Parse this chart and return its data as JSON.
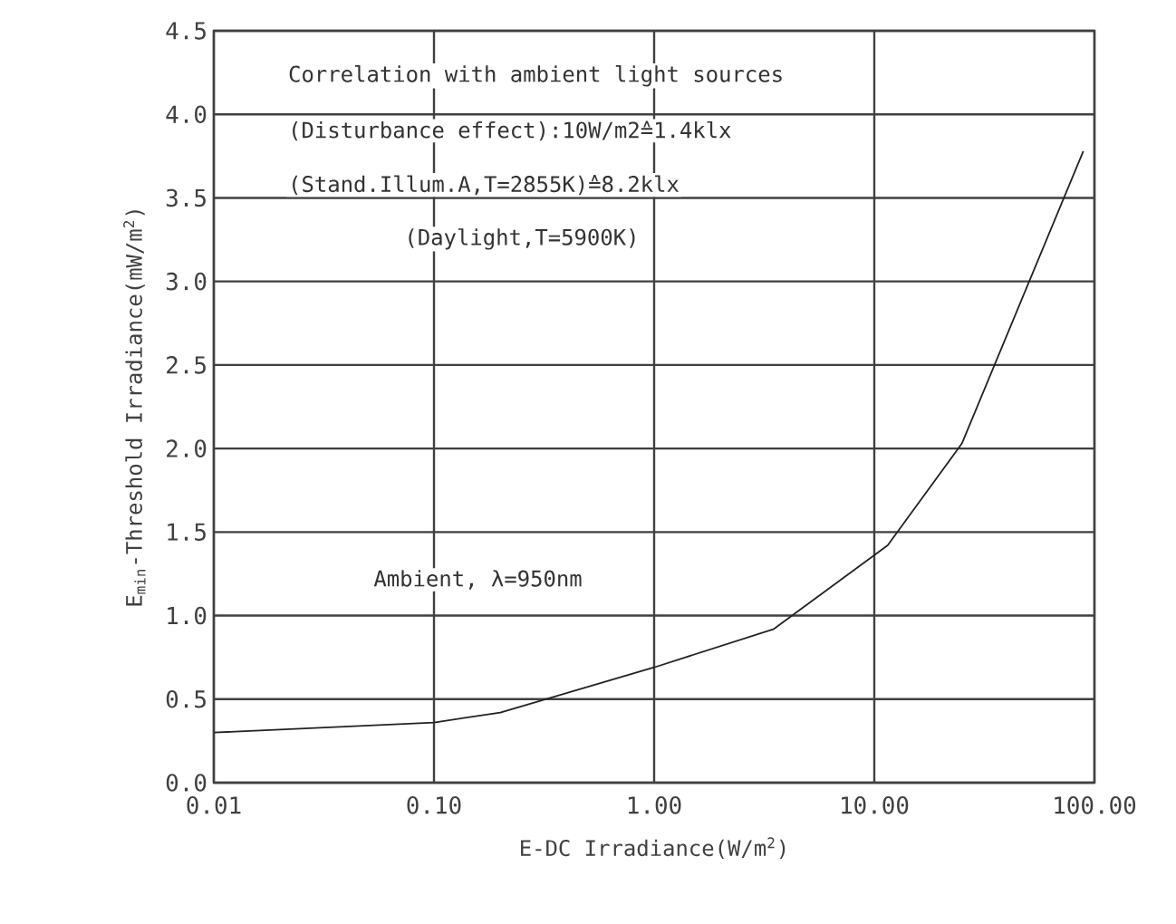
{
  "chart_data": {
    "type": "line",
    "xlabel": "E-DC Irradiance(W/m$^{2}$)",
    "ylabel": "E$_{min}$-Threshold Irradiance(mW/m$^{2}$)",
    "annotations": [
      "Correlation with ambient light sources",
      "(Disturbance effect):10W/m2≙1.4klx",
      "(Stand.Illum.A,T=2855K)≙8.2klx",
      "(Daylight,T=5900K)",
      "Ambient, λ=950nm"
    ],
    "log": "x",
    "xlim": [
      0.01,
      100
    ],
    "ylim": [
      0,
      4.5
    ],
    "xticks": [
      {
        "value": 0.01,
        "label": "0.01"
      },
      {
        "value": 0.1,
        "label": "0.10"
      },
      {
        "value": 1,
        "label": "1.00"
      },
      {
        "value": 10,
        "label": "10.00"
      },
      {
        "value": 100,
        "label": "100.00"
      }
    ],
    "yticks": [
      {
        "value": 0,
        "label": "0.0"
      },
      {
        "value": 0.5,
        "label": "0.5"
      },
      {
        "value": 1,
        "label": "1.0"
      },
      {
        "value": 1.5,
        "label": "1.5"
      },
      {
        "value": 2,
        "label": "2.0"
      },
      {
        "value": 2.5,
        "label": "2.5"
      },
      {
        "value": 3,
        "label": "3.0"
      },
      {
        "value": 3.5,
        "label": "3.5"
      },
      {
        "value": 4,
        "label": "4.0"
      },
      {
        "value": 4.5,
        "label": "4.5"
      }
    ],
    "grid": true,
    "marker": "none",
    "line_style": "solid",
    "series": [
      {
        "color": "#222222",
        "x": [
          0.01,
          0.1,
          0.2,
          1,
          3.5,
          11.5,
          25,
          89
        ],
        "values": [
          0.3,
          0.36,
          0.42,
          0.69,
          0.92,
          1.42,
          2.03,
          3.78
        ]
      }
    ]
  }
}
